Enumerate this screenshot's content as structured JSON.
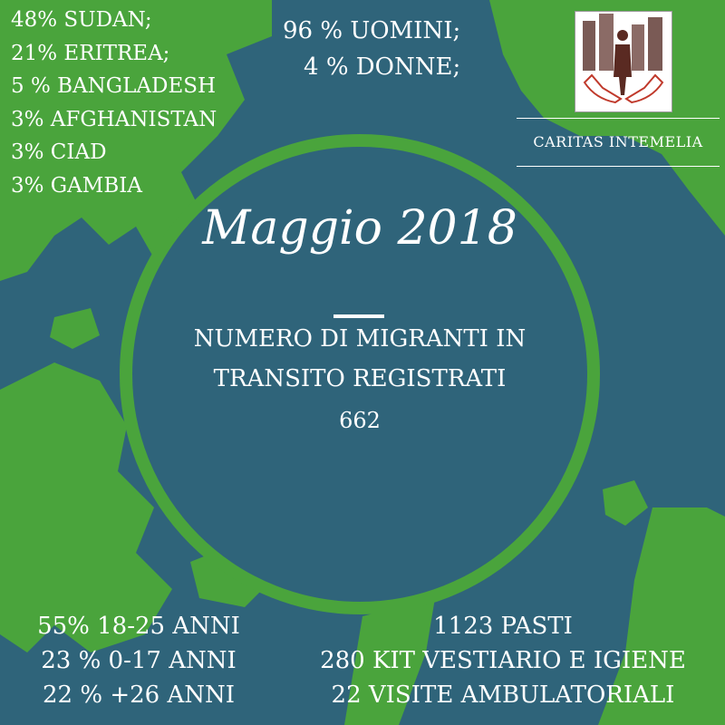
{
  "colors": {
    "ocean": "#2f647a",
    "land": "#4aa43c",
    "text": "#ffffff"
  },
  "header": {
    "title": "Maggio 2018",
    "metric_label": "NUMERO DI MIGRANTI  IN\nTRANSITO REGISTRATI",
    "metric_value": "662"
  },
  "countries": [
    "48% SUDAN;",
    "21% ERITREA;",
    "5 % BANGLADESH",
    "3% AFGHANISTAN",
    "3% CIAD",
    "3% GAMBIA"
  ],
  "gender": [
    "96 % UOMINI;",
    "4 % DONNE;"
  ],
  "ages": [
    "55% 18-25 ANNI",
    "23 % 0-17 ANNI",
    "22 % +26 ANNI"
  ],
  "services": [
    "1123 PASTI",
    "280 KIT VESTIARIO E IGIENE",
    "22 VISITE AMBULATORIALI"
  ],
  "logo": {
    "caption": "CARITAS INTEMELIA",
    "icon": "hands-holding-person-city-icon"
  }
}
